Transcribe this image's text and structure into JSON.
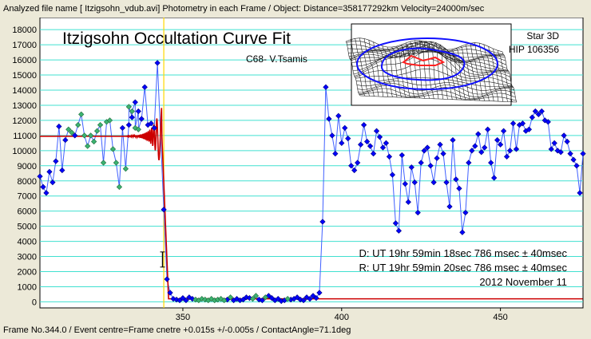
{
  "header": {
    "info": "Analyzed file name [ Itzigsohn_vdub.avi]    Photometry in each Frame /  Object: Distance=358177292km Velocity=24000m/sec"
  },
  "footer": {
    "info": "Frame No.344.0 / Event centre=Frame cnetre +0.015s +/-0.005s / ContactAngle=71.1deg"
  },
  "chart_data": {
    "type": "scatter",
    "title": "Itzigsohn Occultation Curve Fit",
    "subtitle": "C68- V.Tsamis",
    "inset_label_1": "Star 3D",
    "inset_label_2": "HIP 106356",
    "annotations": [
      "D: UT 19hr 59min 18sec 786 msec ± 40msec",
      "R: UT 19hr 59min 20sec 786 msec ± 40msec",
      "2012 November 11"
    ],
    "xlim": [
      305,
      476
    ],
    "ylim": [
      -400,
      18800
    ],
    "yticks": [
      0,
      1000,
      2000,
      3000,
      4000,
      5000,
      6000,
      7000,
      8000,
      9000,
      10000,
      11000,
      12000,
      13000,
      14000,
      15000,
      16000,
      17000,
      18000
    ],
    "xticks": [
      350,
      400,
      450
    ],
    "grid": true,
    "event_frame": 344.0,
    "fit_level": 10950,
    "error_bar": {
      "x": 343.6,
      "y": 2800,
      "yerr": 500
    },
    "series": [
      {
        "color": "#0000ff",
        "points": [
          [
            305,
            8300
          ],
          [
            306,
            7600
          ],
          [
            307,
            7200
          ],
          [
            308,
            8600
          ],
          [
            309,
            7900
          ],
          [
            310,
            9300
          ],
          [
            311,
            11600
          ],
          [
            312,
            8700
          ],
          [
            313,
            10700
          ],
          [
            316,
            11000
          ],
          [
            331,
            11500
          ],
          [
            333,
            11700
          ],
          [
            334,
            12200
          ],
          [
            335,
            13200
          ],
          [
            336,
            12600
          ],
          [
            337,
            12100
          ],
          [
            338,
            14200
          ],
          [
            339,
            11700
          ],
          [
            340,
            11800
          ],
          [
            341,
            11500
          ],
          [
            342,
            15800
          ],
          [
            344,
            6100
          ],
          [
            345,
            1500
          ],
          [
            346,
            600
          ],
          [
            347,
            200
          ],
          [
            348,
            150
          ],
          [
            349,
            100
          ],
          [
            350,
            250
          ],
          [
            351,
            100
          ],
          [
            352,
            300
          ],
          [
            353,
            200
          ],
          [
            364,
            150
          ],
          [
            366,
            100
          ],
          [
            367,
            200
          ],
          [
            368,
            100
          ],
          [
            369,
            150
          ],
          [
            370,
            300
          ],
          [
            371,
            250
          ],
          [
            374,
            150
          ],
          [
            375,
            100
          ],
          [
            377,
            400
          ],
          [
            378,
            250
          ],
          [
            379,
            100
          ],
          [
            380,
            200
          ],
          [
            381,
            50
          ],
          [
            382,
            100
          ],
          [
            384,
            150
          ],
          [
            385,
            200
          ],
          [
            386,
            300
          ],
          [
            387,
            150
          ],
          [
            388,
            100
          ],
          [
            389,
            300
          ],
          [
            390,
            200
          ],
          [
            391,
            400
          ],
          [
            392,
            250
          ],
          [
            393,
            600
          ],
          [
            394,
            5300
          ],
          [
            395,
            14200
          ],
          [
            396,
            12100
          ],
          [
            397,
            11000
          ],
          [
            398,
            9800
          ],
          [
            399,
            12300
          ],
          [
            400,
            10500
          ],
          [
            401,
            11500
          ],
          [
            402,
            10800
          ],
          [
            403,
            9000
          ],
          [
            404,
            8700
          ],
          [
            405,
            9200
          ],
          [
            406,
            10400
          ],
          [
            407,
            11700
          ],
          [
            408,
            10600
          ],
          [
            409,
            10300
          ],
          [
            410,
            9800
          ],
          [
            411,
            11300
          ],
          [
            412,
            10900
          ],
          [
            413,
            10200
          ],
          [
            414,
            10500
          ],
          [
            415,
            9600
          ],
          [
            416,
            8400
          ],
          [
            417,
            5200
          ],
          [
            418,
            4700
          ],
          [
            419,
            9700
          ],
          [
            420,
            7800
          ],
          [
            421,
            6600
          ],
          [
            422,
            8900
          ],
          [
            423,
            7900
          ],
          [
            424,
            5900
          ],
          [
            425,
            9200
          ],
          [
            426,
            10000
          ],
          [
            427,
            10200
          ],
          [
            428,
            9000
          ],
          [
            429,
            7900
          ],
          [
            430,
            9500
          ],
          [
            431,
            10400
          ],
          [
            432,
            9800
          ],
          [
            433,
            7900
          ],
          [
            434,
            6300
          ],
          [
            435,
            10700
          ],
          [
            436,
            8100
          ],
          [
            437,
            7500
          ],
          [
            438,
            4600
          ],
          [
            439,
            5900
          ],
          [
            440,
            9200
          ],
          [
            441,
            10000
          ],
          [
            442,
            10300
          ],
          [
            443,
            11100
          ],
          [
            444,
            9900
          ],
          [
            445,
            10200
          ],
          [
            446,
            11400
          ],
          [
            447,
            9200
          ],
          [
            448,
            8200
          ],
          [
            449,
            10700
          ],
          [
            450,
            10400
          ],
          [
            451,
            11300
          ],
          [
            452,
            9600
          ],
          [
            453,
            10000
          ],
          [
            454,
            11800
          ],
          [
            455,
            10100
          ],
          [
            456,
            11700
          ],
          [
            457,
            11800
          ],
          [
            458,
            11300
          ],
          [
            459,
            11400
          ],
          [
            460,
            12200
          ],
          [
            461,
            12600
          ],
          [
            462,
            12400
          ],
          [
            463,
            12600
          ],
          [
            464,
            12000
          ],
          [
            465,
            11900
          ],
          [
            466,
            10100
          ],
          [
            467,
            10500
          ],
          [
            468,
            10000
          ],
          [
            469,
            9900
          ],
          [
            470,
            11000
          ],
          [
            471,
            10600
          ],
          [
            472,
            9800
          ],
          [
            473,
            9400
          ],
          [
            474,
            9000
          ],
          [
            475,
            7200
          ],
          [
            476,
            9800
          ]
        ]
      },
      {
        "color": "#3cb371",
        "points": [
          [
            314,
            11400
          ],
          [
            315,
            11200
          ],
          [
            317,
            11700
          ],
          [
            318,
            12400
          ],
          [
            319,
            11000
          ],
          [
            320,
            10300
          ],
          [
            321,
            11000
          ],
          [
            322,
            10600
          ],
          [
            323,
            11300
          ],
          [
            324,
            11700
          ],
          [
            325,
            9200
          ],
          [
            326,
            11900
          ],
          [
            327,
            12000
          ],
          [
            328,
            10100
          ],
          [
            329,
            9200
          ],
          [
            330,
            7600
          ],
          [
            332,
            8800
          ],
          [
            333,
            12900
          ],
          [
            334,
            12600
          ],
          [
            335,
            11500
          ],
          [
            336,
            11400
          ],
          [
            354,
            150
          ],
          [
            355,
            100
          ],
          [
            356,
            200
          ],
          [
            357,
            150
          ],
          [
            358,
            100
          ],
          [
            359,
            200
          ],
          [
            360,
            100
          ],
          [
            361,
            150
          ],
          [
            362,
            200
          ],
          [
            363,
            100
          ],
          [
            365,
            300
          ],
          [
            372,
            200
          ],
          [
            373,
            400
          ],
          [
            376,
            300
          ],
          [
            383,
            200
          ]
        ]
      }
    ]
  }
}
